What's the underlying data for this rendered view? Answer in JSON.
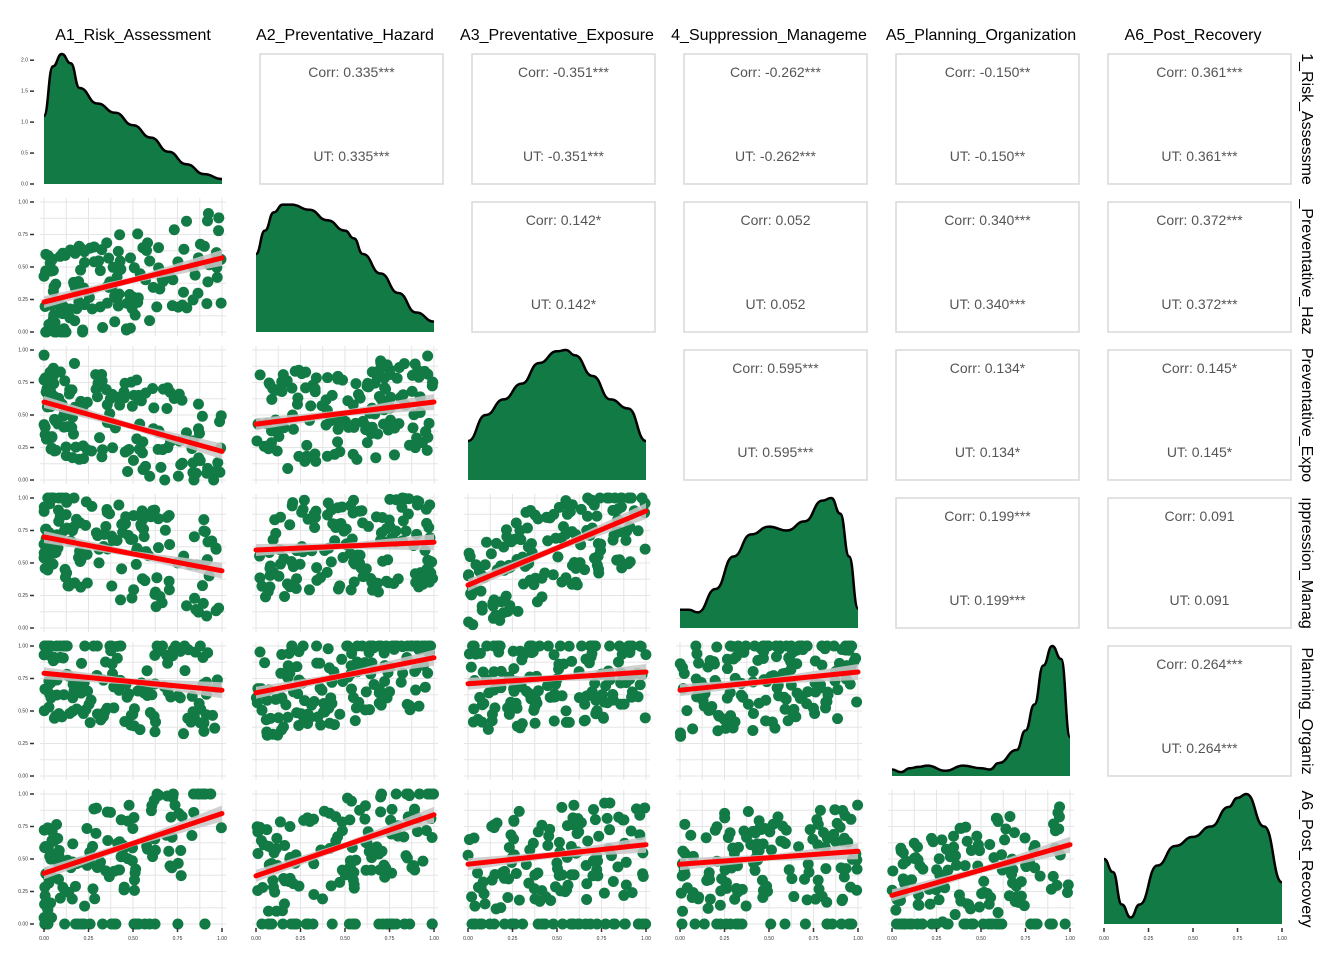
{
  "chart_data": {
    "type": "scatter",
    "title": "",
    "variables": [
      {
        "col_label": "A1_Risk_Assessment",
        "row_label": "1_Risk_Assessme"
      },
      {
        "col_label": "A2_Preventative_Hazard",
        "row_label": "_Preventative_Haz"
      },
      {
        "col_label": "A3_Preventative_Exposure",
        "row_label": "Preventative_Expo"
      },
      {
        "col_label": "4_Suppression_Manageme",
        "row_label": "ıppression_Manag"
      },
      {
        "col_label": "A5_Planning_Organization",
        "row_label": "Planning_Organiz"
      },
      {
        "col_label": "A6_Post_Recovery",
        "row_label": "A6_Post_Recovery"
      }
    ],
    "correlations": [
      {
        "row": 0,
        "col": 1,
        "corr": "Corr: 0.335***",
        "ut": "UT: 0.335***"
      },
      {
        "row": 0,
        "col": 2,
        "corr": "Corr: -0.351***",
        "ut": "UT: -0.351***"
      },
      {
        "row": 0,
        "col": 3,
        "corr": "Corr: -0.262***",
        "ut": "UT: -0.262***"
      },
      {
        "row": 0,
        "col": 4,
        "corr": "Corr: -0.150**",
        "ut": "UT: -0.150**"
      },
      {
        "row": 0,
        "col": 5,
        "corr": "Corr: 0.361***",
        "ut": "UT: 0.361***"
      },
      {
        "row": 1,
        "col": 2,
        "corr": "Corr: 0.142*",
        "ut": "UT: 0.142*"
      },
      {
        "row": 1,
        "col": 3,
        "corr": "Corr: 0.052",
        "ut": "UT: 0.052"
      },
      {
        "row": 1,
        "col": 4,
        "corr": "Corr: 0.340***",
        "ut": "UT: 0.340***"
      },
      {
        "row": 1,
        "col": 5,
        "corr": "Corr: 0.372***",
        "ut": "UT: 0.372***"
      },
      {
        "row": 2,
        "col": 3,
        "corr": "Corr: 0.595***",
        "ut": "UT: 0.595***"
      },
      {
        "row": 2,
        "col": 4,
        "corr": "Corr: 0.134*",
        "ut": "UT: 0.134*"
      },
      {
        "row": 2,
        "col": 5,
        "corr": "Corr: 0.145*",
        "ut": "UT: 0.145*"
      },
      {
        "row": 3,
        "col": 4,
        "corr": "Corr: 0.199***",
        "ut": "UT: 0.199***"
      },
      {
        "row": 3,
        "col": 5,
        "corr": "Corr: 0.091",
        "ut": "UT: 0.091"
      },
      {
        "row": 4,
        "col": 5,
        "corr": "Corr: 0.264***",
        "ut": "UT: 0.264***"
      }
    ],
    "regression_lines": [
      {
        "row": 1,
        "col": 0,
        "x": [
          0,
          1
        ],
        "y": [
          0.23,
          0.57
        ]
      },
      {
        "row": 2,
        "col": 0,
        "x": [
          0,
          1
        ],
        "y": [
          0.6,
          0.22
        ]
      },
      {
        "row": 2,
        "col": 1,
        "x": [
          0,
          1
        ],
        "y": [
          0.43,
          0.6
        ]
      },
      {
        "row": 3,
        "col": 0,
        "x": [
          0,
          1
        ],
        "y": [
          0.7,
          0.44
        ]
      },
      {
        "row": 3,
        "col": 1,
        "x": [
          0,
          1
        ],
        "y": [
          0.6,
          0.66
        ]
      },
      {
        "row": 3,
        "col": 2,
        "x": [
          0,
          1
        ],
        "y": [
          0.33,
          0.9
        ]
      },
      {
        "row": 4,
        "col": 0,
        "x": [
          0,
          1
        ],
        "y": [
          0.79,
          0.66
        ]
      },
      {
        "row": 4,
        "col": 1,
        "x": [
          0,
          1
        ],
        "y": [
          0.64,
          0.91
        ]
      },
      {
        "row": 4,
        "col": 2,
        "x": [
          0,
          1
        ],
        "y": [
          0.71,
          0.8
        ]
      },
      {
        "row": 4,
        "col": 3,
        "x": [
          0,
          1
        ],
        "y": [
          0.66,
          0.8
        ]
      },
      {
        "row": 5,
        "col": 0,
        "x": [
          0,
          1
        ],
        "y": [
          0.39,
          0.85
        ]
      },
      {
        "row": 5,
        "col": 1,
        "x": [
          0,
          1
        ],
        "y": [
          0.37,
          0.84
        ]
      },
      {
        "row": 5,
        "col": 2,
        "x": [
          0,
          1
        ],
        "y": [
          0.46,
          0.61
        ]
      },
      {
        "row": 5,
        "col": 3,
        "x": [
          0,
          1
        ],
        "y": [
          0.46,
          0.56
        ]
      },
      {
        "row": 5,
        "col": 4,
        "x": [
          0,
          1
        ],
        "y": [
          0.22,
          0.61
        ]
      }
    ],
    "densities": [
      {
        "var": 0,
        "ylim": [
          0,
          2.1
        ],
        "y_ticks": [
          "0.0",
          "0.5",
          "1.0",
          "1.5",
          "2.0"
        ],
        "x": [
          0,
          0.05,
          0.1,
          0.15,
          0.2,
          0.3,
          0.4,
          0.5,
          0.6,
          0.7,
          0.8,
          0.9,
          1.0
        ],
        "y": [
          1.1,
          1.9,
          2.1,
          1.95,
          1.55,
          1.3,
          1.15,
          0.95,
          0.75,
          0.52,
          0.32,
          0.16,
          0.08
        ]
      },
      {
        "var": 1,
        "x": [
          0,
          0.05,
          0.1,
          0.15,
          0.2,
          0.3,
          0.4,
          0.5,
          0.55,
          0.6,
          0.7,
          0.8,
          0.9,
          1.0
        ],
        "y": [
          0.6,
          0.78,
          0.92,
          0.98,
          0.98,
          0.94,
          0.86,
          0.78,
          0.72,
          0.6,
          0.45,
          0.3,
          0.15,
          0.08
        ]
      },
      {
        "var": 2,
        "x": [
          0,
          0.1,
          0.2,
          0.3,
          0.4,
          0.5,
          0.55,
          0.6,
          0.7,
          0.8,
          0.9,
          1.0
        ],
        "y": [
          0.3,
          0.5,
          0.62,
          0.74,
          0.9,
          0.99,
          1.0,
          0.96,
          0.8,
          0.62,
          0.55,
          0.3
        ]
      },
      {
        "var": 3,
        "x": [
          0,
          0.05,
          0.1,
          0.2,
          0.3,
          0.4,
          0.5,
          0.6,
          0.7,
          0.8,
          0.85,
          0.9,
          0.95,
          1.0
        ],
        "y": [
          0.14,
          0.14,
          0.12,
          0.3,
          0.55,
          0.72,
          0.78,
          0.75,
          0.82,
          0.98,
          1.0,
          0.88,
          0.55,
          0.15
        ]
      },
      {
        "var": 4,
        "x": [
          0,
          0.05,
          0.1,
          0.15,
          0.2,
          0.3,
          0.4,
          0.5,
          0.55,
          0.6,
          0.7,
          0.75,
          0.8,
          0.85,
          0.9,
          0.95,
          1.0
        ],
        "y": [
          0.05,
          0.03,
          0.06,
          0.07,
          0.08,
          0.04,
          0.08,
          0.06,
          0.05,
          0.1,
          0.2,
          0.35,
          0.55,
          0.85,
          1.0,
          0.9,
          0.3
        ]
      },
      {
        "var": 5,
        "x": [
          0,
          0.05,
          0.1,
          0.15,
          0.2,
          0.3,
          0.4,
          0.5,
          0.6,
          0.7,
          0.75,
          0.8,
          0.9,
          1.0
        ],
        "y": [
          0.5,
          0.4,
          0.15,
          0.05,
          0.15,
          0.45,
          0.6,
          0.67,
          0.75,
          0.9,
          0.97,
          1.0,
          0.75,
          0.32
        ]
      }
    ],
    "x_ticks": [
      "0.00",
      "0.25",
      "0.50",
      "0.75",
      "1.00"
    ],
    "y_ticks": [
      "0.00",
      "0.25",
      "0.50",
      "0.75",
      "1.00"
    ],
    "xlim": [
      0,
      1
    ],
    "ylim": [
      0,
      1
    ],
    "grid": true,
    "colors": {
      "point": "#127a45",
      "fill": "#127a45",
      "line": "#ff0000",
      "ribbon": "#c8c8c8",
      "panel_border": "#d9d9d9",
      "grid": "#e5e5e5",
      "text": "#000000",
      "corr_text": "#555555"
    }
  }
}
